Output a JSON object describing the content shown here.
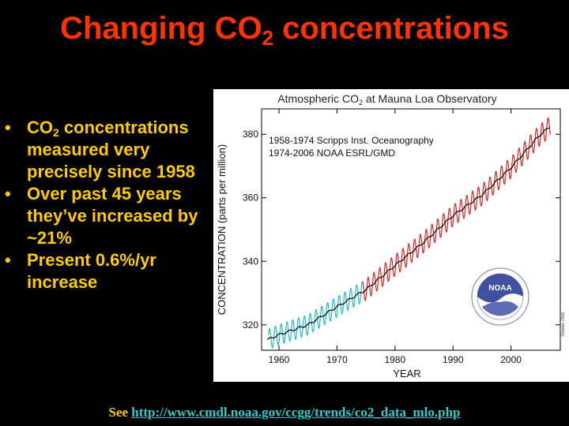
{
  "slide": {
    "title_pre": "Changing CO",
    "title_sub": "2",
    "title_post": " concentrations",
    "bullets": [
      {
        "pre": "CO",
        "sub": "2",
        "post": " concentrations measured very precisely since 1958"
      },
      {
        "pre": "Over past 45 years they’ve increased by ~21%",
        "sub": "",
        "post": ""
      },
      {
        "pre": "Present 0.6%/yr increase",
        "sub": "",
        "post": ""
      }
    ],
    "bullet_glyph": "•",
    "footer_see": "See",
    "footer_link": "http://www.cmdl.noaa.gov/ccgg/trends/co2_data_mlo.php"
  },
  "colors": {
    "background": "#000000",
    "title": "#ff3300",
    "bullets": "#ffcc00",
    "link": "#33cccc",
    "scripps_series": "#22bbcc",
    "noaa_series": "#dd2222",
    "trend": "#000000"
  },
  "chart_data": {
    "type": "line",
    "title_pre": "Atmospheric CO",
    "title_sub": "2",
    "title_post": " at Mauna Loa Observatory",
    "xlabel": "YEAR",
    "ylabel": "CONCENTRATION (parts per million)",
    "xlim": [
      1957,
      2008.5
    ],
    "ylim": [
      312,
      388
    ],
    "xticks": [
      1960,
      1970,
      1980,
      1990,
      2000
    ],
    "yticks": [
      320,
      340,
      360,
      380
    ],
    "legend": [
      "1958-1974 Scripps Inst. Oceanography",
      "1974-2006 NOAA ESRL/GMD"
    ],
    "side_note": "October 2006",
    "logo_text": "NOAA",
    "series": [
      {
        "name": "1958-1974 Scripps Inst. Oceanography",
        "color": "#22bbcc",
        "x_range": [
          1958.2,
          1974.4
        ],
        "seasonal_amplitude_ppm": 3.2
      },
      {
        "name": "1974-2006 NOAA ESRL/GMD",
        "color": "#dd2222",
        "x_range": [
          1974.4,
          2006.8
        ],
        "seasonal_amplitude_ppm": 3.3
      },
      {
        "name": "trend",
        "color": "#000000"
      }
    ],
    "trend_points": {
      "x": [
        1958,
        1960,
        1965,
        1970,
        1975,
        1980,
        1985,
        1990,
        1995,
        2000,
        2005,
        2006.8
      ],
      "y": [
        315.3,
        316.9,
        320.0,
        325.7,
        331.1,
        338.7,
        346.1,
        354.4,
        360.9,
        369.5,
        379.8,
        382.5
      ]
    }
  }
}
